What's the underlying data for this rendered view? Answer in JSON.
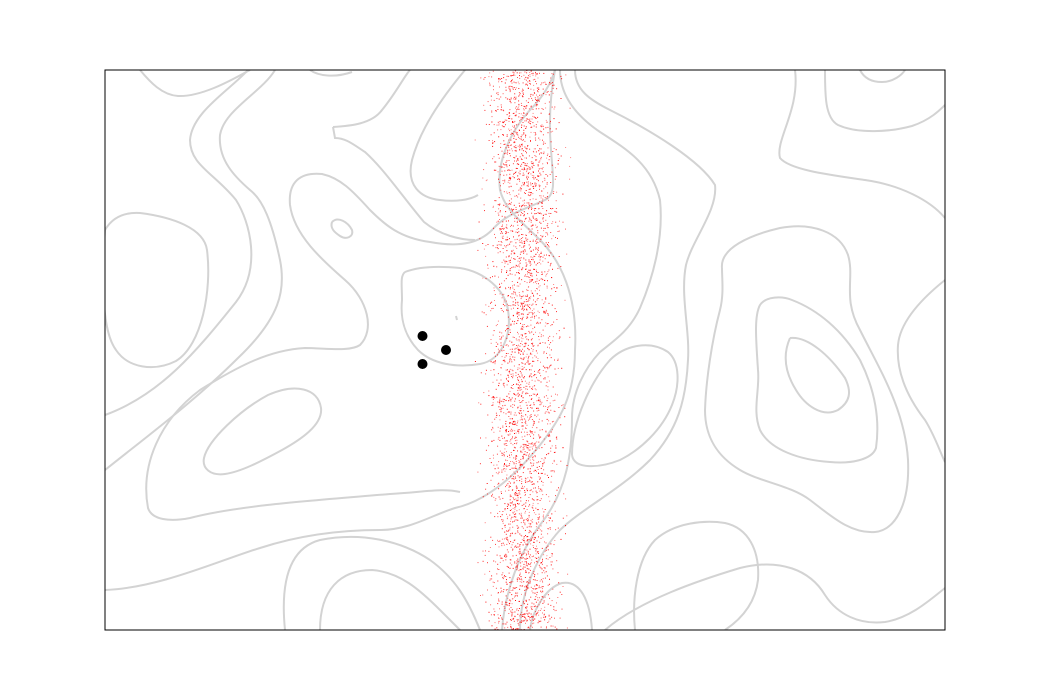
{
  "chart_data": {
    "type": "scatter",
    "title": "",
    "xlabel": "",
    "ylabel": "",
    "xlim": [
      0,
      1
    ],
    "ylim": [
      0,
      1
    ],
    "axis_ticks": false,
    "grid": false,
    "colors": {
      "contour": "#d3d3d3",
      "samples": "#ff0000",
      "points": "#000000",
      "frame": "#000000"
    },
    "samples_band": {
      "x_range": [
        0.435,
        0.56
      ],
      "density": "dense",
      "marker": "tiny red dots"
    },
    "points": [
      {
        "x": 0.378,
        "y": 0.525
      },
      {
        "x": 0.406,
        "y": 0.5
      },
      {
        "x": 0.378,
        "y": 0.475
      }
    ]
  }
}
